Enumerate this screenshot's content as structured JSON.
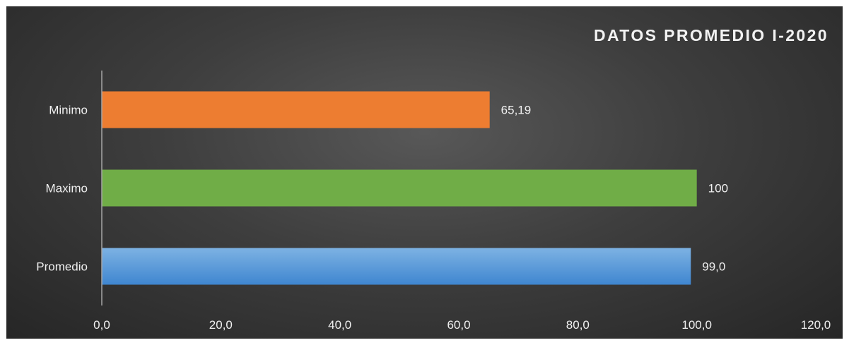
{
  "chart_data": {
    "type": "bar",
    "orientation": "horizontal",
    "title": "DATOS PROMEDIO  I-2020",
    "categories": [
      "Minimo",
      "Maximo",
      "Promedio"
    ],
    "values": [
      65.19,
      100,
      99.0
    ],
    "data_labels": [
      "65,19",
      "100",
      "99,0"
    ],
    "colors": [
      "#ed7d31",
      "#70ad47",
      "#5b9bd5"
    ],
    "xlim": [
      0,
      120
    ],
    "x_ticks": [
      0,
      20,
      40,
      60,
      80,
      100,
      120
    ],
    "x_tick_labels": [
      "0,0",
      "20,0",
      "40,0",
      "60,0",
      "80,0",
      "100,0",
      "120,0"
    ],
    "grid": false,
    "legend": "none"
  },
  "colors": {
    "background": "#3a3a3a",
    "text": "#f0f0f0",
    "axis_line": "#a6a6a6"
  }
}
